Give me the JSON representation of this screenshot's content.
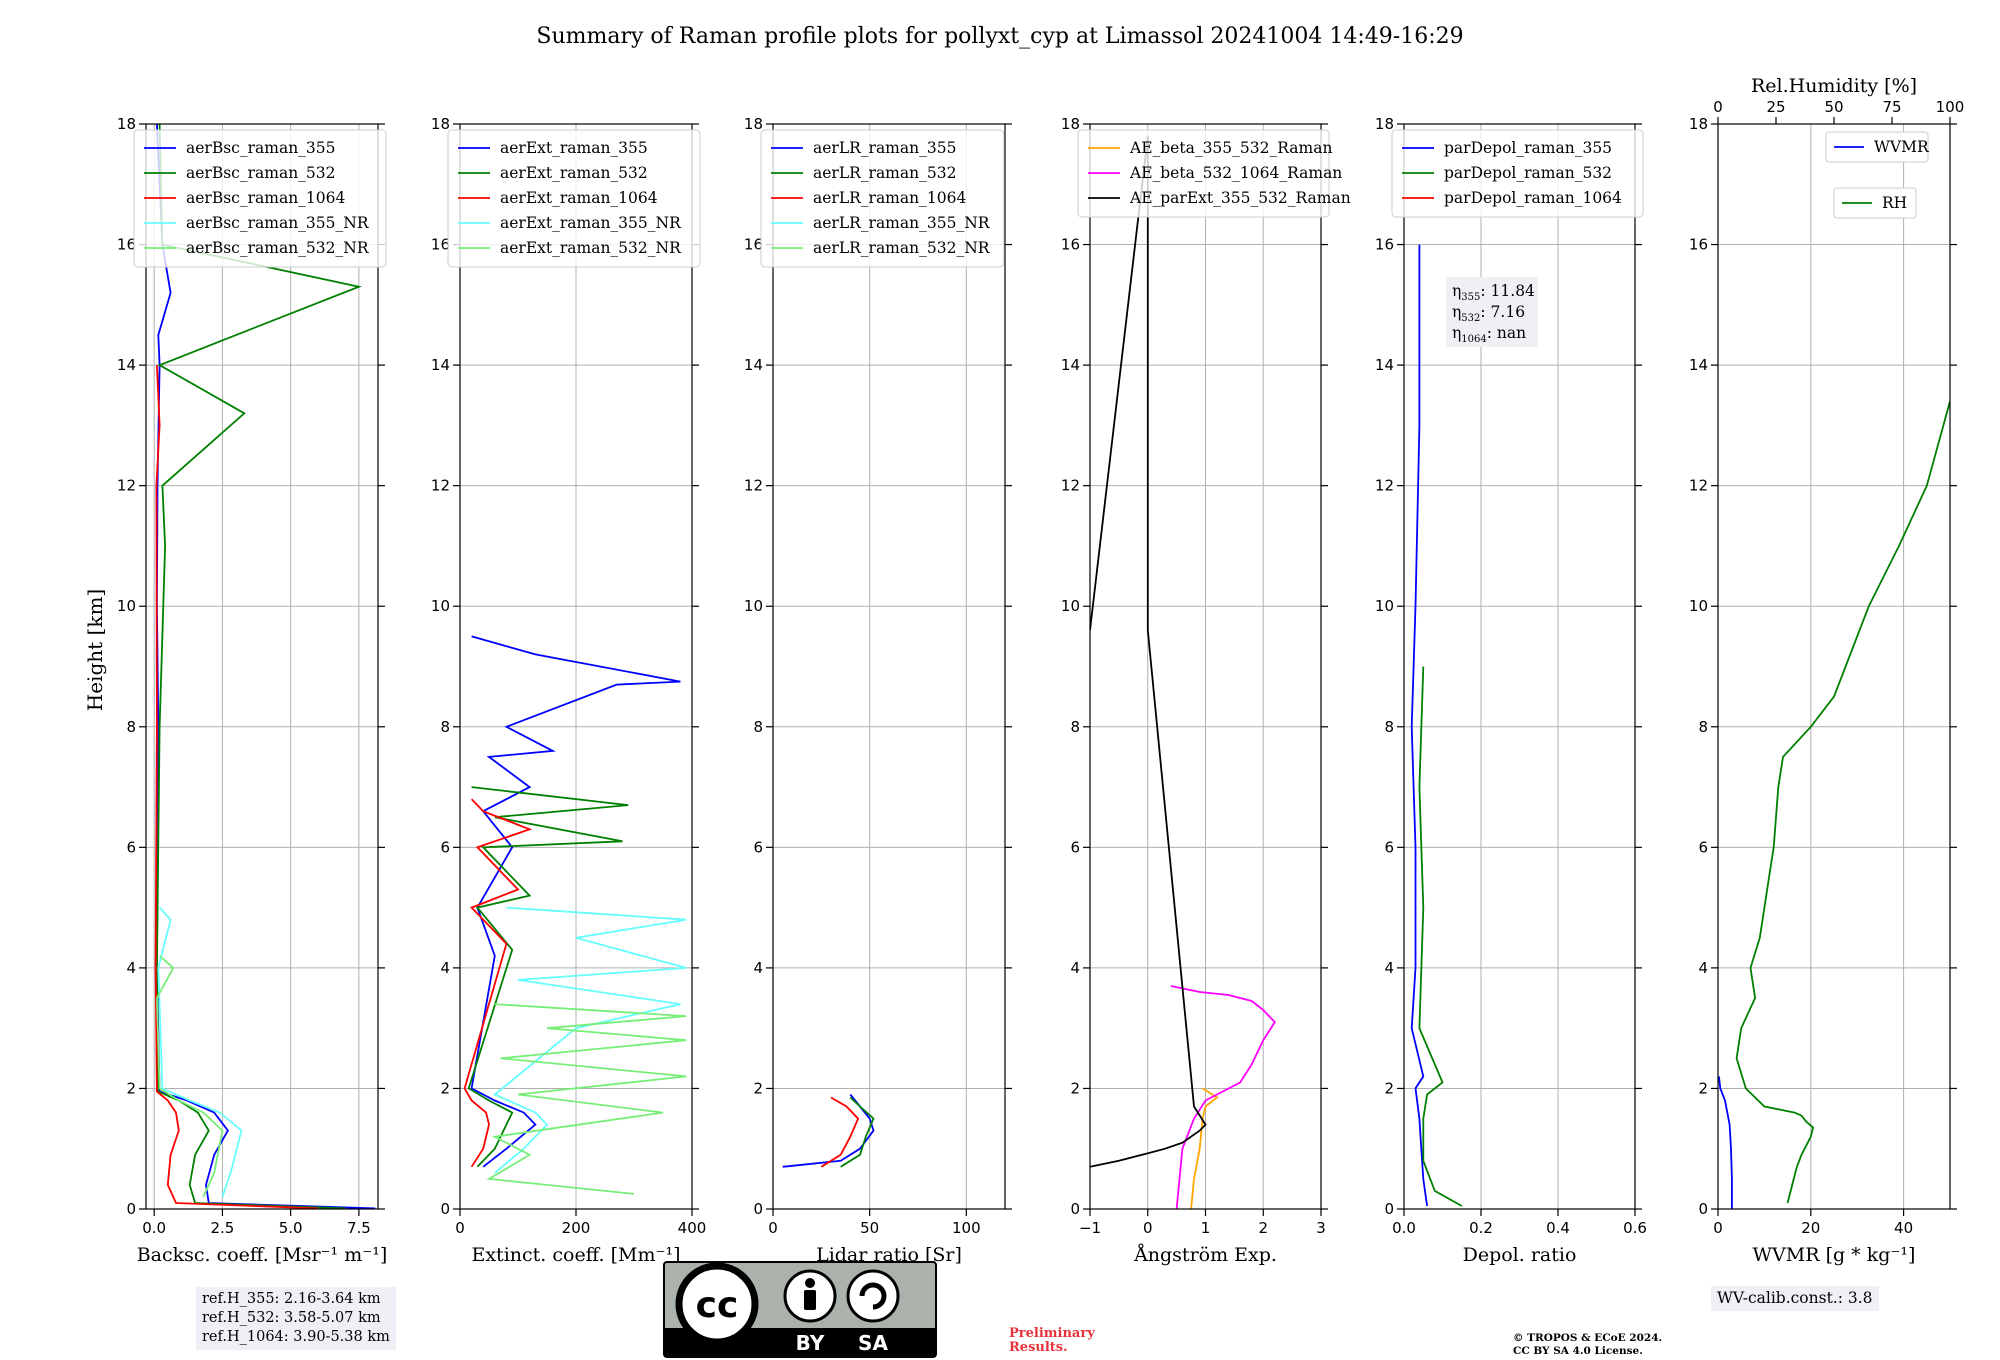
{
  "chart_data": {
    "title": "Summary of Raman profile plots for pollyxt_cyp at Limassol 20241004 14:49-16:29",
    "type": "line",
    "ylabel": "Height [km]",
    "ylim": [
      0,
      18
    ],
    "yticks": [
      "0",
      "2",
      "4",
      "6",
      "8",
      "10",
      "12",
      "14",
      "16",
      "18"
    ],
    "panels": [
      {
        "id": "bsc",
        "xlabel": "Backsc. coeff. [Msr⁻¹ m⁻¹]",
        "xlim": [
          -0.3,
          8.2
        ],
        "xticks": [
          0,
          2.5,
          5,
          7.5
        ],
        "xticklabels": [
          "0.0",
          "2.5",
          "5.0",
          "7.5"
        ],
        "legend": {
          "position": "top-left",
          "entries": [
            {
              "label": "aerBsc_raman_355",
              "color": "#0000ff"
            },
            {
              "label": "aerBsc_raman_532",
              "color": "#008000"
            },
            {
              "label": "aerBsc_raman_1064",
              "color": "#ff0000"
            },
            {
              "label": "aerBsc_raman_355_NR",
              "color": "#66ffff"
            },
            {
              "label": "aerBsc_raman_532_NR",
              "color": "#77ee77"
            }
          ]
        },
        "series": [
          {
            "name": "aerBsc_raman_355",
            "color": "#0000ff",
            "x": [
              8.1,
              2.0,
              1.9,
              2.2,
              2.7,
              2.2,
              1.2,
              0.2,
              0.1,
              0.15,
              0.1,
              0.12,
              0.2,
              0.15,
              0.6,
              0.3,
              0.1
            ],
            "y": [
              0.01,
              0.1,
              0.4,
              0.9,
              1.3,
              1.6,
              1.8,
              1.95,
              4,
              8,
              10,
              12,
              14,
              14.5,
              15.2,
              16,
              18
            ]
          },
          {
            "name": "aerBsc_raman_532",
            "color": "#008000",
            "x": [
              7.0,
              1.5,
              1.3,
              1.5,
              2.0,
              1.6,
              0.9,
              0.15,
              0.1,
              0.2,
              0.4,
              0.3,
              3.3,
              0.2,
              7.5,
              0.3,
              0.2
            ],
            "y": [
              0.01,
              0.1,
              0.4,
              0.9,
              1.3,
              1.6,
              1.8,
              1.95,
              4,
              8,
              11,
              12,
              13.2,
              14,
              15.3,
              16,
              18
            ]
          },
          {
            "name": "aerBsc_raman_1064",
            "color": "#ff0000",
            "x": [
              6.0,
              0.8,
              0.5,
              0.6,
              0.9,
              0.8,
              0.5,
              0.1,
              0.05,
              0.1,
              0.08,
              0.2,
              0.1
            ],
            "y": [
              0.01,
              0.1,
              0.4,
              0.9,
              1.3,
              1.6,
              1.8,
              1.95,
              4,
              8,
              12,
              13,
              14
            ]
          },
          {
            "name": "aerBsc_raman_355_NR",
            "color": "#66ffff",
            "x": [
              2.5,
              2.8,
              3.2,
              2.4,
              1.3,
              0.3,
              0.15,
              0.6,
              0.2
            ],
            "y": [
              0.2,
              0.6,
              1.3,
              1.6,
              1.8,
              2.0,
              4.0,
              4.8,
              5.0
            ]
          },
          {
            "name": "aerBsc_raman_532_NR",
            "color": "#77ee77",
            "x": [
              1.8,
              2.2,
              2.5,
              1.8,
              0.9,
              0.2,
              0.1,
              0.7,
              0.2
            ],
            "y": [
              0.2,
              0.6,
              1.3,
              1.6,
              1.8,
              2.0,
              3.5,
              4.0,
              4.2
            ]
          }
        ]
      },
      {
        "id": "ext",
        "xlabel": "Extinct. coeff. [Mm⁻¹]",
        "xlim": [
          0,
          400
        ],
        "xticks": [
          0,
          200,
          400
        ],
        "xticklabels": [
          "0",
          "200",
          "400"
        ],
        "legend": {
          "position": "top-left",
          "entries": [
            {
              "label": "aerExt_raman_355",
              "color": "#0000ff"
            },
            {
              "label": "aerExt_raman_532",
              "color": "#008000"
            },
            {
              "label": "aerExt_raman_1064",
              "color": "#ff0000"
            },
            {
              "label": "aerExt_raman_355_NR",
              "color": "#66ffff"
            },
            {
              "label": "aerExt_raman_532_NR",
              "color": "#77ee77"
            }
          ]
        },
        "series": [
          {
            "name": "aerExt_raman_355",
            "color": "#0000ff",
            "x": [
              40,
              80,
              130,
              110,
              60,
              20,
              60,
              30,
              90,
              40,
              120,
              50,
              160,
              80,
              270,
              380,
              130,
              20
            ],
            "y": [
              0.7,
              1.0,
              1.4,
              1.6,
              1.8,
              2.0,
              4.2,
              5.0,
              6.0,
              6.6,
              7.0,
              7.5,
              7.6,
              8.0,
              8.7,
              8.75,
              9.2,
              9.5
            ]
          },
          {
            "name": "aerExt_raman_532",
            "color": "#008000",
            "x": [
              30,
              60,
              80,
              90,
              50,
              15,
              90,
              30,
              120,
              40,
              280,
              60,
              290,
              20
            ],
            "y": [
              0.7,
              1.0,
              1.4,
              1.6,
              1.8,
              2.0,
              4.3,
              5.0,
              5.2,
              6.0,
              6.1,
              6.5,
              6.7,
              7.0
            ]
          },
          {
            "name": "aerExt_raman_1064",
            "color": "#ff0000",
            "x": [
              20,
              40,
              50,
              45,
              20,
              8,
              80,
              20,
              100,
              30,
              120,
              40,
              20
            ],
            "y": [
              0.7,
              1.0,
              1.4,
              1.6,
              1.8,
              2.0,
              4.4,
              5.0,
              5.3,
              6.0,
              6.3,
              6.6,
              6.8
            ]
          },
          {
            "name": "aerExt_raman_355_NR",
            "color": "#66ffff",
            "x": [
              60,
              110,
              150,
              130,
              60,
              200,
              380,
              100,
              390,
              200,
              390,
              80
            ],
            "y": [
              0.6,
              1.0,
              1.4,
              1.6,
              1.9,
              3.0,
              3.4,
              3.8,
              4.0,
              4.5,
              4.8,
              5.0
            ]
          },
          {
            "name": "aerExt_raman_532_NR",
            "color": "#77ee77",
            "x": [
              300,
              50,
              120,
              60,
              350,
              100,
              390,
              70,
              390,
              150,
              390,
              60
            ],
            "y": [
              0.25,
              0.5,
              0.9,
              1.2,
              1.6,
              1.9,
              2.2,
              2.5,
              2.8,
              3.0,
              3.2,
              3.4
            ]
          }
        ]
      },
      {
        "id": "lr",
        "xlabel": "Lidar ratio [Sr]",
        "xlim": [
          0,
          120
        ],
        "xticks": [
          0,
          50,
          100
        ],
        "xticklabels": [
          "0",
          "50",
          "100"
        ],
        "legend": {
          "position": "top-left",
          "entries": [
            {
              "label": "aerLR_raman_355",
              "color": "#0000ff"
            },
            {
              "label": "aerLR_raman_532",
              "color": "#008000"
            },
            {
              "label": "aerLR_raman_1064",
              "color": "#ff0000"
            },
            {
              "label": "aerLR_raman_355_NR",
              "color": "#66ffff"
            },
            {
              "label": "aerLR_raman_532_NR",
              "color": "#77ee77"
            }
          ]
        },
        "series": [
          {
            "name": "aerLR_raman_355",
            "color": "#0000ff",
            "x": [
              5,
              35,
              45,
              52,
              50,
              45,
              40
            ],
            "y": [
              0.7,
              0.8,
              1.0,
              1.3,
              1.5,
              1.7,
              1.9
            ]
          },
          {
            "name": "aerLR_raman_532",
            "color": "#008000",
            "x": [
              35,
              45,
              48,
              52,
              45,
              40
            ],
            "y": [
              0.7,
              0.9,
              1.2,
              1.5,
              1.7,
              1.85
            ]
          },
          {
            "name": "aerLR_raman_1064",
            "color": "#ff0000",
            "x": [
              25,
              35,
              40,
              44,
              38,
              30
            ],
            "y": [
              0.7,
              0.9,
              1.2,
              1.5,
              1.7,
              1.85
            ]
          }
        ]
      },
      {
        "id": "ae",
        "xlabel": "Ångström Exp.",
        "xlim": [
          -1,
          3
        ],
        "xticks": [
          -1,
          0,
          1,
          2,
          3
        ],
        "xticklabels": [
          "−1",
          "0",
          "1",
          "2",
          "3"
        ],
        "legend": {
          "position": "top-left",
          "entries": [
            {
              "label": "AE_beta_355_532_Raman",
              "color": "#ffa500"
            },
            {
              "label": "AE_beta_532_1064_Raman",
              "color": "#ff00ff"
            },
            {
              "label": "AE_parExt_355_532_Raman",
              "color": "#000000"
            }
          ]
        },
        "series": [
          {
            "name": "AE_beta_355_532_Raman",
            "color": "#ffa500",
            "x": [
              0.75,
              0.8,
              0.9,
              0.95,
              1.0,
              1.2,
              0.95
            ],
            "y": [
              0.0,
              0.5,
              1.0,
              1.5,
              1.7,
              1.85,
              2.0
            ]
          },
          {
            "name": "AE_beta_532_1064_Raman",
            "color": "#ff00ff",
            "x": [
              0.5,
              0.55,
              0.6,
              0.8,
              1.0,
              1.6,
              1.8,
              2.0,
              2.2,
              2.0,
              1.8,
              1.4,
              0.9,
              0.4
            ],
            "y": [
              0.0,
              0.5,
              1.0,
              1.5,
              1.8,
              2.1,
              2.4,
              2.8,
              3.1,
              3.3,
              3.45,
              3.55,
              3.6,
              3.7
            ]
          },
          {
            "name": "AE_parExt_355_532_Raman",
            "color": "#000000",
            "x": [
              -1.0,
              -0.5,
              -0.1,
              0.3,
              0.6,
              0.9,
              1.0,
              0.8,
              0.0,
              0.0,
              -1.0
            ],
            "y": [
              0.7,
              0.8,
              0.9,
              1.0,
              1.1,
              1.3,
              1.4,
              1.7,
              9.6,
              17.8,
              9.6
            ]
          }
        ]
      },
      {
        "id": "dep",
        "xlabel": "Depol. ratio",
        "xlim": [
          0,
          0.6
        ],
        "xticks": [
          0,
          0.2,
          0.4,
          0.6
        ],
        "xticklabels": [
          "0.0",
          "0.2",
          "0.4",
          "0.6"
        ],
        "legend": {
          "position": "top-left",
          "entries": [
            {
              "label": "parDepol_raman_355",
              "color": "#0000ff"
            },
            {
              "label": "parDepol_raman_532",
              "color": "#008000"
            },
            {
              "label": "parDepol_raman_1064",
              "color": "#ff0000"
            }
          ]
        },
        "annotation": [
          {
            "sym": "η",
            "sub": "355",
            "val": ": 11.84"
          },
          {
            "sym": "η",
            "sub": "532",
            "val": ": 7.16"
          },
          {
            "sym": "η",
            "sub": "1064",
            "val": ": nan"
          }
        ],
        "series": [
          {
            "name": "parDepol_raman_355",
            "color": "#0000ff",
            "x": [
              0.06,
              0.05,
              0.045,
              0.04,
              0.03,
              0.05,
              0.02,
              0.03,
              0.03,
              0.02,
              0.03,
              0.04,
              0.04
            ],
            "y": [
              0.05,
              0.5,
              1.0,
              1.5,
              2.0,
              2.2,
              3.0,
              4.0,
              6.0,
              8.0,
              10.0,
              13.0,
              16.0
            ]
          },
          {
            "name": "parDepol_raman_532",
            "color": "#008000",
            "x": [
              0.15,
              0.08,
              0.05,
              0.05,
              0.06,
              0.1,
              0.04,
              0.05,
              0.04,
              0.05
            ],
            "y": [
              0.05,
              0.3,
              0.8,
              1.5,
              1.9,
              2.1,
              3.0,
              5.0,
              7.0,
              9.0
            ]
          }
        ]
      },
      {
        "id": "wv",
        "xlabel": "WVMR [g * kg⁻¹]",
        "xlim": [
          0,
          50
        ],
        "xticks": [
          0,
          20,
          40
        ],
        "xticklabels": [
          "0",
          "20",
          "40"
        ],
        "top_axis": {
          "label": "Rel.Humidity [%]",
          "xlim": [
            0,
            100
          ],
          "xticks": [
            0,
            25,
            50,
            75,
            100
          ],
          "xticklabels": [
            "0",
            "25",
            "50",
            "75",
            "100"
          ]
        },
        "legend": {
          "position": "top-right",
          "entries": [
            {
              "label": "WVMR",
              "color": "#0000ff"
            },
            {
              "label": "RH",
              "color": "#008000"
            }
          ]
        },
        "series": [
          {
            "name": "WVMR",
            "color": "#0000ff",
            "axis": "bottom",
            "x": [
              3.0,
              3.0,
              2.8,
              2.5,
              2.0,
              1.5,
              0.5,
              0.2
            ],
            "y": [
              0.0,
              0.5,
              1.0,
              1.4,
              1.6,
              1.8,
              2.0,
              2.2
            ]
          },
          {
            "name": "RH",
            "color": "#008000",
            "axis": "top",
            "x": [
              30,
              32,
              34,
              36,
              40,
              41,
              38,
              36,
              33,
              20,
              12,
              8,
              10,
              16,
              14,
              18,
              20,
              22,
              24,
              25,
              26,
              28,
              40,
              50,
              55,
              65,
              78,
              90,
              100
            ],
            "y": [
              0.1,
              0.4,
              0.7,
              0.9,
              1.2,
              1.35,
              1.45,
              1.55,
              1.6,
              1.7,
              2.0,
              2.5,
              3.0,
              3.5,
              4.0,
              4.5,
              5.0,
              5.5,
              6.0,
              6.5,
              7.0,
              7.5,
              8.0,
              8.5,
              9.0,
              10.0,
              11.0,
              12.0,
              13.4
            ]
          }
        ]
      }
    ]
  },
  "footer": {
    "refh": [
      "ref.H_355: 2.16-3.64 km",
      "ref.H_532: 3.58-5.07 km",
      "ref.H_1064: 3.90-5.38 km"
    ],
    "cc_by": "BY",
    "cc_sa": "SA",
    "preliminary": [
      "Preliminary",
      "Results."
    ],
    "copyright": [
      "© TROPOS & ECoE 2024.",
      "CC BY SA 4.0 License."
    ],
    "wvcalib": "WV-calib.const.: 3.8"
  }
}
